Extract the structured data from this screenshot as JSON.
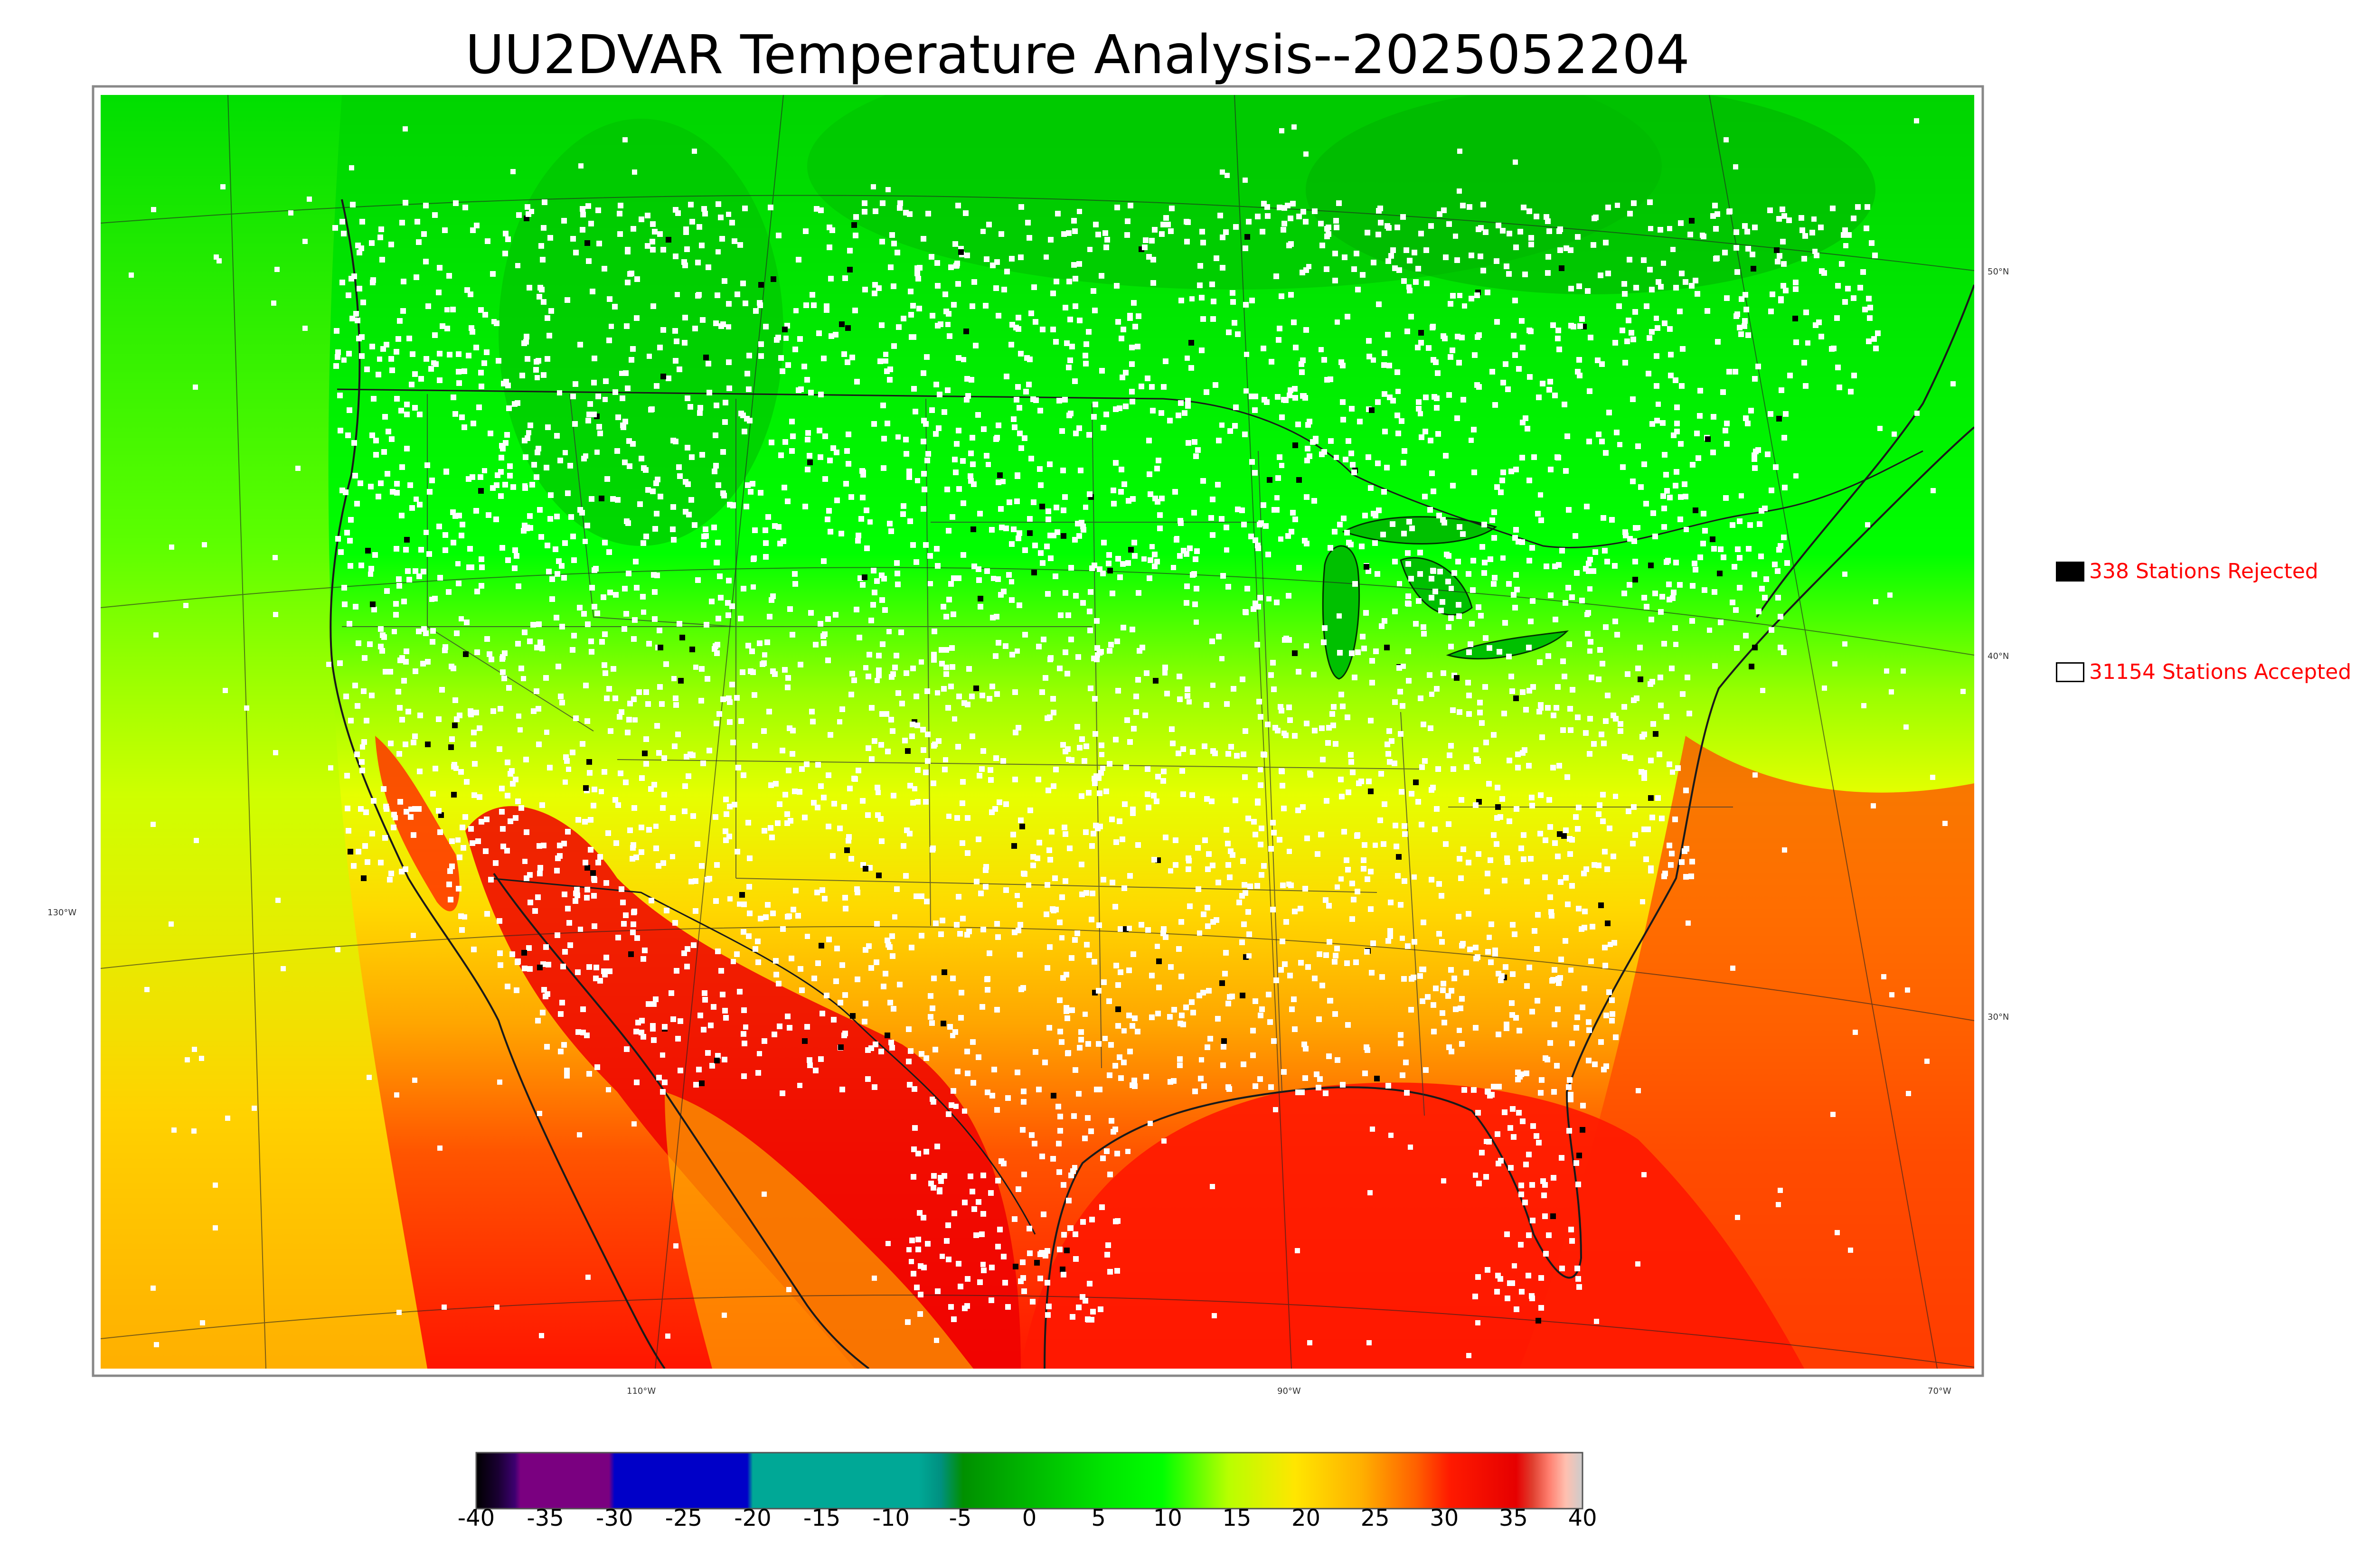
{
  "title": "UU2DVAR Temperature Analysis--2025052204",
  "legend": {
    "rejected": {
      "label": "338 Stations Rejected",
      "swatch_color": "#000000"
    },
    "accepted": {
      "label": "31154 Stations Accepted",
      "swatch_color": "#ffffff"
    }
  },
  "grid_labels": {
    "lat_50": "50°N",
    "lat_40": "40°N",
    "lat_30": "30°N",
    "lon_130": "130°W",
    "lon_110": "110°W",
    "lon_90": "90°W",
    "lon_70": "70°W"
  },
  "colorbar": {
    "ticks": [
      "-40",
      "-35",
      "-30",
      "-25",
      "-20",
      "-15",
      "-10",
      "-5",
      "0",
      "5",
      "10",
      "15",
      "20",
      "25",
      "30",
      "35",
      "40"
    ],
    "min": -40,
    "max": 40
  },
  "colors": {
    "cold_green": "#00c800",
    "cool_green": "#00ff00",
    "mild_yellow": "#e6ff00",
    "warm_yellow": "#ffd000",
    "orange": "#ff9a00",
    "red": "#ff1a00",
    "dark_red": "#e00000"
  }
}
